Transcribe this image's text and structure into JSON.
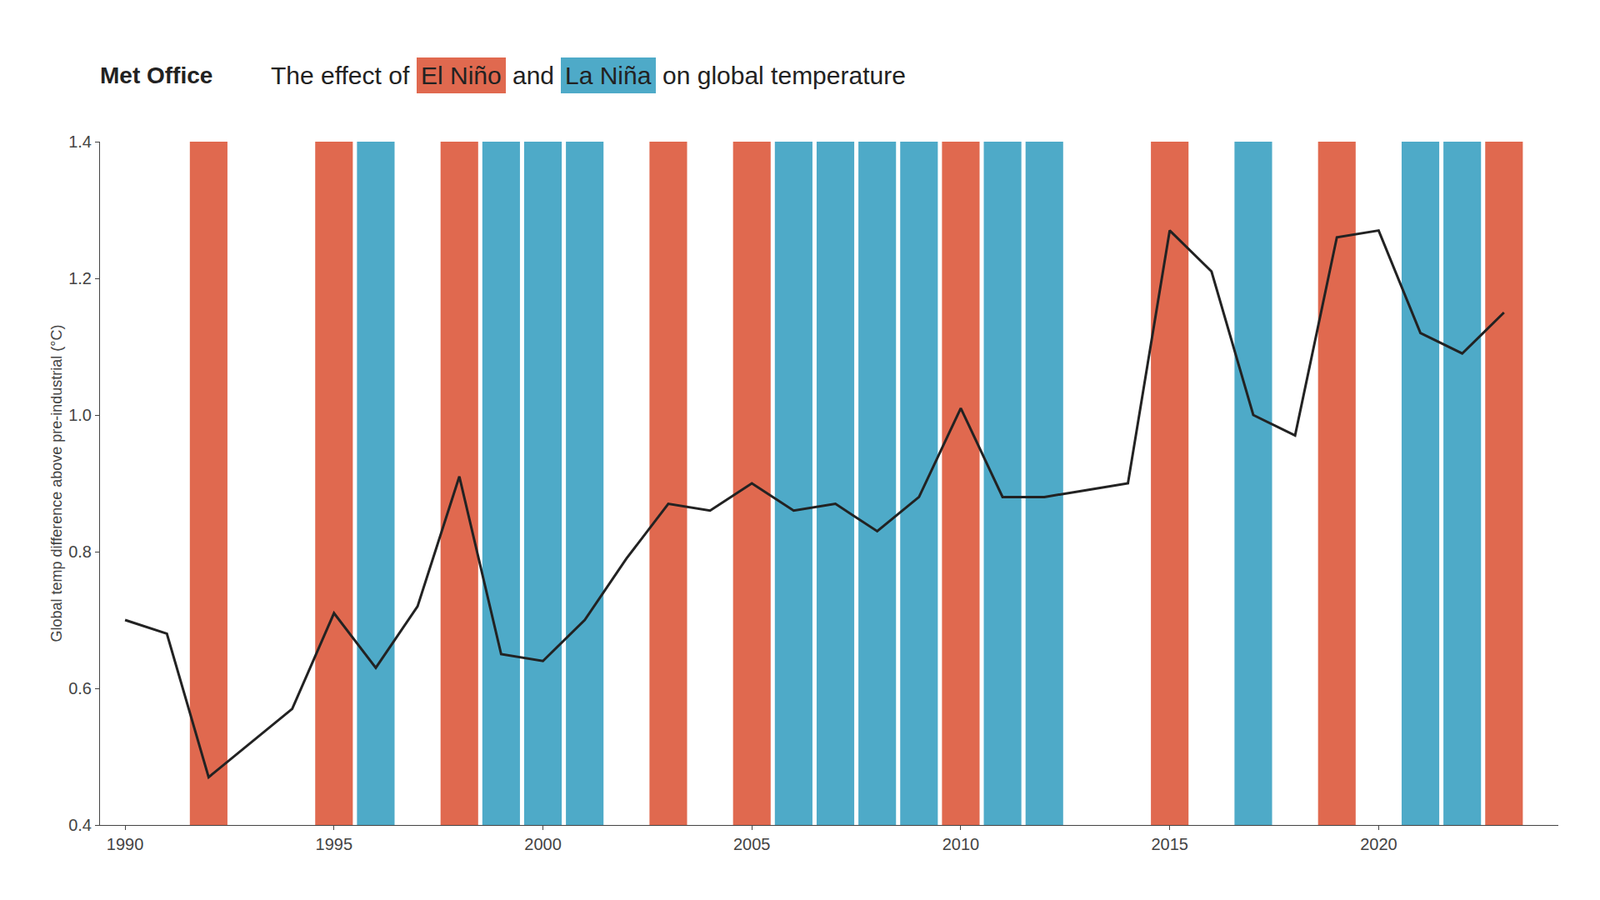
{
  "chart_data": {
    "type": "line",
    "title": "The effect of El Niño and La Niña on global temperature",
    "ylabel": "Global temp difference above pre-industrial (°C)",
    "x": [
      1990,
      1991,
      1992,
      1993,
      1994,
      1995,
      1996,
      1997,
      1998,
      1999,
      2000,
      2001,
      2002,
      2003,
      2004,
      2005,
      2006,
      2007,
      2008,
      2009,
      2010,
      2011,
      2012,
      2013,
      2014,
      2015,
      2016,
      2017,
      2018,
      2019,
      2020,
      2021,
      2022,
      2023
    ],
    "values": [
      0.7,
      0.68,
      0.47,
      0.52,
      0.57,
      0.71,
      0.63,
      0.72,
      0.91,
      0.65,
      0.64,
      0.7,
      0.79,
      0.87,
      0.86,
      0.9,
      0.86,
      0.87,
      0.83,
      0.88,
      1.01,
      0.88,
      0.88,
      0.89,
      0.9,
      1.27,
      1.21,
      1.0,
      0.97,
      1.26,
      1.27,
      1.12,
      1.09,
      1.15
    ],
    "color": "#222222",
    "bands": [
      {
        "label": "El Niño",
        "color": "#e0694f",
        "x": [
          1992,
          1995,
          1998,
          2003,
          2005,
          2010,
          2015,
          2019,
          2023
        ]
      },
      {
        "label": "La Niña",
        "color": "#4eaac8",
        "x": [
          1996,
          1999,
          2000,
          2001,
          2006,
          2007,
          2008,
          2009,
          2011,
          2012,
          2017,
          2021,
          2022
        ]
      }
    ],
    "annotations": [
      {
        "text": "Met Office"
      }
    ],
    "xlim": [
      1989.4,
      2024.3
    ],
    "xticks": [
      1990,
      1995,
      2000,
      2005,
      2010,
      2015,
      2020
    ],
    "ylim": [
      0.4,
      1.4
    ],
    "yticks": [
      0.4,
      0.6,
      0.8,
      {
        "value": 1.0,
        "label": "1.0"
      },
      1.2,
      1.4
    ],
    "grid": false
  }
}
